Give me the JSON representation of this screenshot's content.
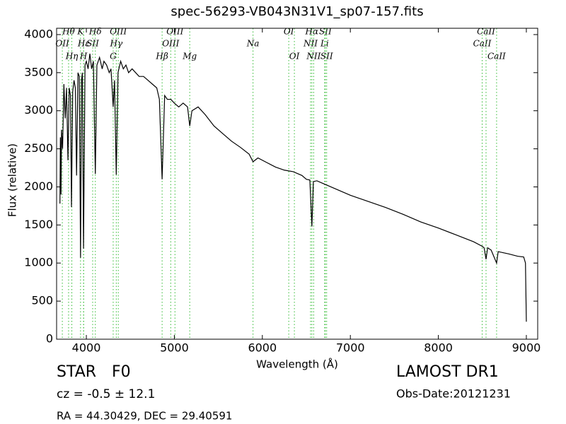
{
  "chart_data": {
    "type": "line",
    "title": "spec-56293-VB043N31V1_sp07-157.fits",
    "x_label": "Wavelength (Å)",
    "y_label": "Flux (relative)",
    "color": "#000000",
    "x": [
      3700,
      3705,
      3712,
      3718,
      3730,
      3745,
      3760,
      3775,
      3791,
      3805,
      3820,
      3831,
      3845,
      3860,
      3875,
      3889,
      3905,
      3920,
      3934,
      3945,
      3955,
      3968,
      3985,
      4000,
      4020,
      4040,
      4060,
      4080,
      4102,
      4120,
      4150,
      4180,
      4200,
      4230,
      4260,
      4280,
      4305,
      4320,
      4340,
      4360,
      4390,
      4420,
      4450,
      4480,
      4520,
      4560,
      4600,
      4650,
      4700,
      4750,
      4800,
      4830,
      4861,
      4890,
      4920,
      4960,
      5000,
      5050,
      5100,
      5150,
      5175,
      5200,
      5270,
      5350,
      5450,
      5550,
      5650,
      5750,
      5850,
      5894,
      5950,
      6050,
      6150,
      6250,
      6350,
      6450,
      6500,
      6540,
      6563,
      6580,
      6620,
      6700,
      6800,
      6900,
      7000,
      7200,
      7400,
      7600,
      7800,
      8000,
      8200,
      8400,
      8498,
      8520,
      8542,
      8560,
      8600,
      8662,
      8680,
      8800,
      8900,
      8970,
      8990,
      9000
    ],
    "values": [
      1780,
      2650,
      1900,
      2750,
      2500,
      3350,
      2900,
      3300,
      2350,
      3300,
      3200,
      1735,
      3250,
      3400,
      3300,
      2150,
      3500,
      3450,
      1070,
      3400,
      3500,
      1190,
      3600,
      3650,
      3550,
      3750,
      3550,
      3650,
      2170,
      3600,
      3700,
      3550,
      3650,
      3600,
      3500,
      3550,
      3050,
      3400,
      2160,
      3500,
      3650,
      3550,
      3600,
      3500,
      3550,
      3500,
      3450,
      3450,
      3400,
      3350,
      3300,
      3150,
      2100,
      3200,
      3150,
      3150,
      3100,
      3050,
      3100,
      3050,
      2800,
      3000,
      3050,
      2950,
      2800,
      2700,
      2600,
      2520,
      2430,
      2330,
      2380,
      2320,
      2260,
      2220,
      2200,
      2150,
      2100,
      2090,
      1480,
      2070,
      2080,
      2040,
      1990,
      1940,
      1890,
      1810,
      1730,
      1640,
      1540,
      1460,
      1370,
      1280,
      1220,
      1200,
      1050,
      1200,
      1170,
      1000,
      1150,
      1120,
      1090,
      1080,
      1000,
      230
    ],
    "xlim": [
      3662,
      9129
    ],
    "ylim": [
      0,
      4083
    ],
    "xticks": [
      4000,
      5000,
      6000,
      7000,
      8000,
      9000
    ],
    "yticks": [
      0,
      500,
      1000,
      1500,
      2000,
      2500,
      3000,
      3500,
      4000
    ],
    "grid": false,
    "marker_color": "#33bb33",
    "spectral_lines": [
      {
        "label": "OII",
        "x": 3727
      },
      {
        "label": "Hθ",
        "x": 3798
      },
      {
        "label": "Hη",
        "x": 3835
      },
      {
        "label": "K",
        "x": 3934
      },
      {
        "label": "H",
        "x": 3968
      },
      {
        "label": "Hε",
        "x": 3970
      },
      {
        "label": "SII",
        "x": 4072
      },
      {
        "label": "Hδ",
        "x": 4102
      },
      {
        "label": "G",
        "x": 4305
      },
      {
        "label": "Hγ",
        "x": 4340
      },
      {
        "label": "OIII",
        "x": 4363
      },
      {
        "label": "Hβ",
        "x": 4861
      },
      {
        "label": "OIII",
        "x": 4959
      },
      {
        "label": "OIII",
        "x": 5007
      },
      {
        "label": "Mg",
        "x": 5175
      },
      {
        "label": "Na",
        "x": 5894
      },
      {
        "label": "OI",
        "x": 6300
      },
      {
        "label": "OI",
        "x": 6364
      },
      {
        "label": "NII",
        "x": 6548
      },
      {
        "label": "Hα",
        "x": 6563
      },
      {
        "label": "NII",
        "x": 6583
      },
      {
        "label": "Li",
        "x": 6708
      },
      {
        "label": "SII",
        "x": 6716
      },
      {
        "label": "SII",
        "x": 6731
      },
      {
        "label": "CaII",
        "x": 8498
      },
      {
        "label": "CaII",
        "x": 8542
      },
      {
        "label": "CaII",
        "x": 8662
      }
    ],
    "annotations": {
      "class": "STAR",
      "subclass": "F0",
      "release": "LAMOST DR1",
      "velocity": "cz = -0.5 ± 12.1",
      "obs_date": "Obs-Date:20121231",
      "coords": "RA = 44.30429, DEC = 29.40591"
    }
  }
}
